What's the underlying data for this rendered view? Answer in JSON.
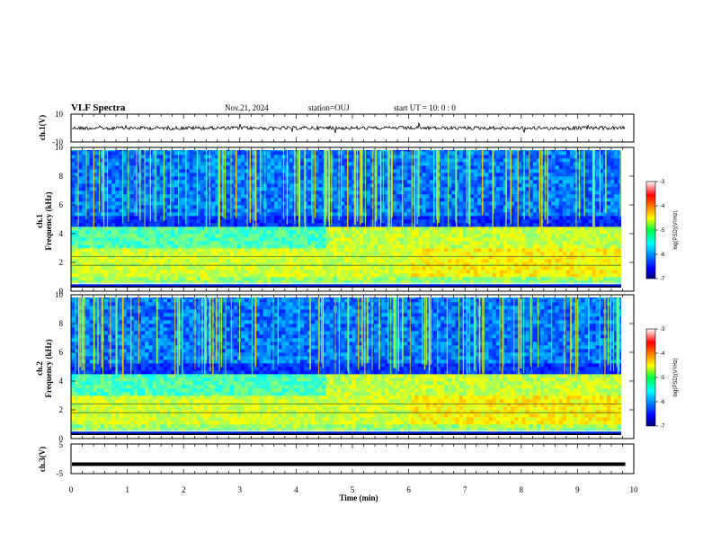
{
  "header": {
    "title": "VLF Spectra",
    "date": "Nov.21, 2024",
    "station": "station=OUJ",
    "start": "start  UT  =   10: 0  : 0"
  },
  "chart_data": [
    {
      "type": "line",
      "name": "ch1-waveform",
      "ylabel": "ch.1(V)",
      "ylim": [
        -10,
        10
      ],
      "yticks": [
        "10",
        "-10"
      ],
      "xlim": [
        0,
        10
      ],
      "baseline_value": 0,
      "trace_end_min": 9.85
    },
    {
      "type": "heatmap",
      "name": "ch1-spectrogram",
      "ylabel": "ch.1",
      "ylabel2": "Frequency  (kHz)",
      "ylim": [
        0,
        10
      ],
      "yticks": [
        "0",
        "2",
        "4",
        "6",
        "8",
        "10"
      ],
      "xlim": [
        0,
        9.85
      ],
      "colorbar": {
        "label": "log(PSD)(V²/Hz)",
        "range": [
          -7,
          -3
        ],
        "ticks": [
          "-3",
          "-4",
          "-5",
          "-6",
          "-7"
        ]
      }
    },
    {
      "type": "heatmap",
      "name": "ch2-spectrogram",
      "ylabel": "ch.2",
      "ylabel2": "Frequency  (kHz)",
      "ylim": [
        0,
        10
      ],
      "yticks": [
        "0",
        "2",
        "4",
        "6",
        "8",
        "10"
      ],
      "xlim": [
        0,
        9.85
      ],
      "colorbar": {
        "label": "log(PSD)(V²/Hz)",
        "range": [
          -7,
          -3
        ],
        "ticks": [
          "-3",
          "-4",
          "-5",
          "-6",
          "-7"
        ]
      }
    },
    {
      "type": "line",
      "name": "ch3-waveform",
      "ylabel": "ch.3(V)",
      "ylim": [
        -5,
        5
      ],
      "yticks": [
        "5",
        "-5"
      ],
      "xlim": [
        0,
        10
      ],
      "baseline_value": -1.8,
      "trace_end_min": 9.85
    }
  ],
  "xaxis": {
    "label": "Time  (min)",
    "ticks": [
      "0",
      "1",
      "2",
      "3",
      "4",
      "5",
      "6",
      "7",
      "8",
      "9",
      "10"
    ]
  }
}
